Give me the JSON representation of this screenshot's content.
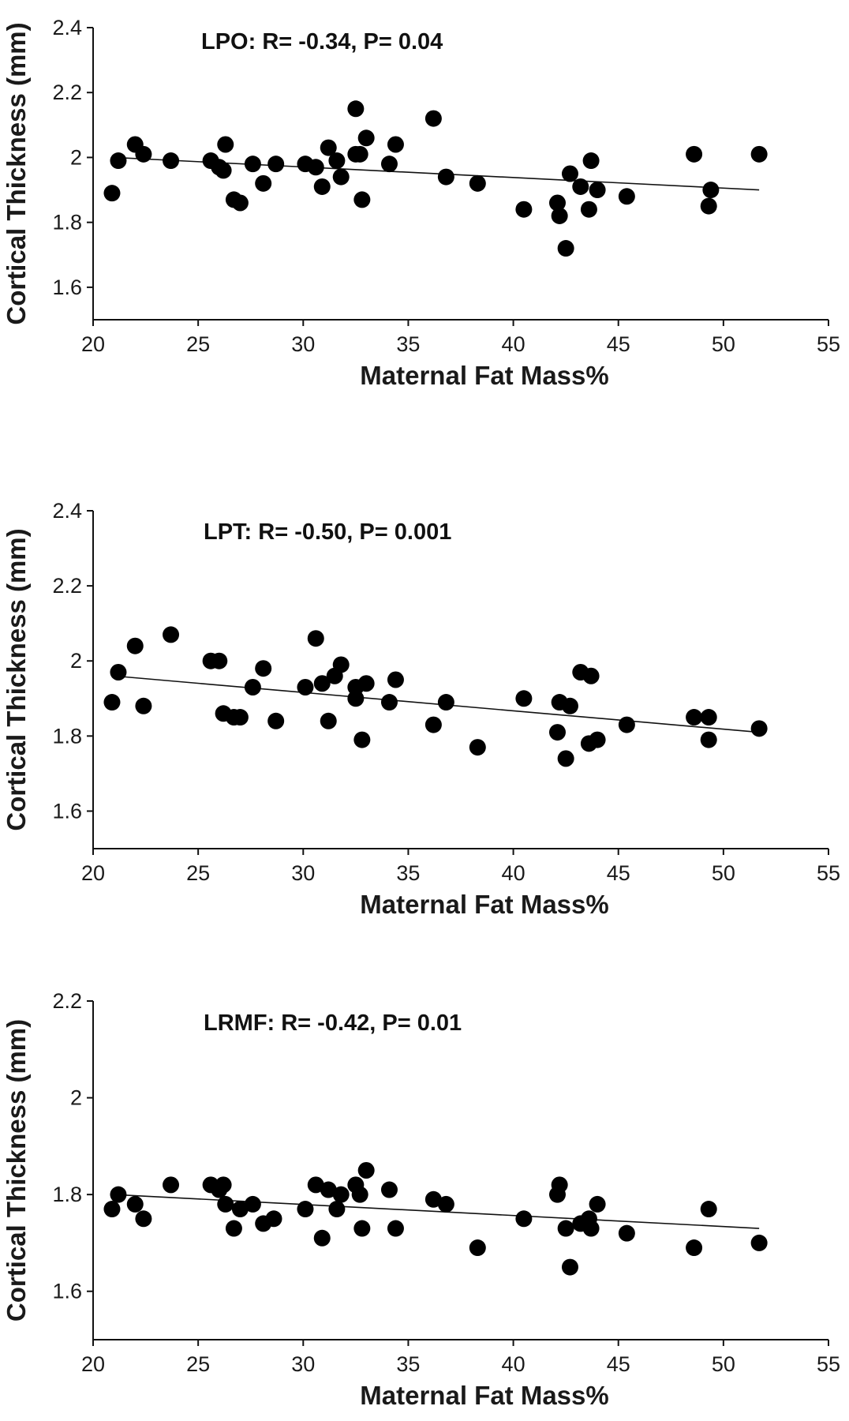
{
  "chart_data": [
    {
      "type": "scatter",
      "annotation": "LPO: R= -0.34, P= 0.04",
      "xlabel": "Maternal Fat Mass%",
      "ylabel": "Cortical Thickness (mm)",
      "xlim": [
        20,
        55
      ],
      "ylim": [
        1.5,
        2.4
      ],
      "xticks": [
        "20",
        "25",
        "30",
        "35",
        "40",
        "45",
        "50",
        "55"
      ],
      "yticks": [
        "1.6",
        "1.8",
        "2",
        "2.2",
        "2.4"
      ],
      "trendline": {
        "x": [
          21,
          51.7
        ],
        "y": [
          2.0,
          1.9
        ]
      },
      "points": [
        [
          20.9,
          1.89
        ],
        [
          21.2,
          1.99
        ],
        [
          22.0,
          2.04
        ],
        [
          22.4,
          2.01
        ],
        [
          23.7,
          1.99
        ],
        [
          25.6,
          1.99
        ],
        [
          26.0,
          1.97
        ],
        [
          26.2,
          1.96
        ],
        [
          26.3,
          2.04
        ],
        [
          26.7,
          1.87
        ],
        [
          27.0,
          1.86
        ],
        [
          27.6,
          1.98
        ],
        [
          28.1,
          1.92
        ],
        [
          28.7,
          1.98
        ],
        [
          30.1,
          1.98
        ],
        [
          30.6,
          1.97
        ],
        [
          30.9,
          1.91
        ],
        [
          31.2,
          2.03
        ],
        [
          31.6,
          1.99
        ],
        [
          31.8,
          1.94
        ],
        [
          32.5,
          2.15
        ],
        [
          32.5,
          2.01
        ],
        [
          32.7,
          2.01
        ],
        [
          32.8,
          1.87
        ],
        [
          33.0,
          2.06
        ],
        [
          34.1,
          1.98
        ],
        [
          34.4,
          2.04
        ],
        [
          36.2,
          2.12
        ],
        [
          36.8,
          1.94
        ],
        [
          38.3,
          1.92
        ],
        [
          40.5,
          1.84
        ],
        [
          42.1,
          1.86
        ],
        [
          42.2,
          1.82
        ],
        [
          42.5,
          1.72
        ],
        [
          42.7,
          1.95
        ],
        [
          43.2,
          1.91
        ],
        [
          43.6,
          1.84
        ],
        [
          43.7,
          1.99
        ],
        [
          44.0,
          1.9
        ],
        [
          45.4,
          1.88
        ],
        [
          48.6,
          2.01
        ],
        [
          49.3,
          1.85
        ],
        [
          49.4,
          1.9
        ],
        [
          51.7,
          2.01
        ]
      ]
    },
    {
      "type": "scatter",
      "annotation": "LPT: R= -0.50, P= 0.001",
      "xlabel": "Maternal Fat Mass%",
      "ylabel": "Cortical Thickness (mm)",
      "xlim": [
        20,
        55
      ],
      "ylim": [
        1.5,
        2.4
      ],
      "xticks": [
        "20",
        "25",
        "30",
        "35",
        "40",
        "45",
        "50",
        "55"
      ],
      "yticks": [
        "1.6",
        "1.8",
        "2",
        "2.2",
        "2.4"
      ],
      "trendline": {
        "x": [
          21,
          51.7
        ],
        "y": [
          1.96,
          1.81
        ]
      },
      "points": [
        [
          20.9,
          1.89
        ],
        [
          21.2,
          1.97
        ],
        [
          22.0,
          2.04
        ],
        [
          22.4,
          1.88
        ],
        [
          23.7,
          2.07
        ],
        [
          25.6,
          2.0
        ],
        [
          26.0,
          2.0
        ],
        [
          26.2,
          1.86
        ],
        [
          26.7,
          1.85
        ],
        [
          27.0,
          1.85
        ],
        [
          27.6,
          1.93
        ],
        [
          28.1,
          1.98
        ],
        [
          28.7,
          1.84
        ],
        [
          30.1,
          1.93
        ],
        [
          30.6,
          2.06
        ],
        [
          30.9,
          1.94
        ],
        [
          31.2,
          1.84
        ],
        [
          31.5,
          1.96
        ],
        [
          31.8,
          1.99
        ],
        [
          32.5,
          1.9
        ],
        [
          32.5,
          1.93
        ],
        [
          32.8,
          1.79
        ],
        [
          33.0,
          1.94
        ],
        [
          34.1,
          1.89
        ],
        [
          34.4,
          1.95
        ],
        [
          36.2,
          1.83
        ],
        [
          36.8,
          1.89
        ],
        [
          38.3,
          1.77
        ],
        [
          40.5,
          1.9
        ],
        [
          42.1,
          1.81
        ],
        [
          42.2,
          1.89
        ],
        [
          42.5,
          1.74
        ],
        [
          42.7,
          1.88
        ],
        [
          43.2,
          1.97
        ],
        [
          43.6,
          1.78
        ],
        [
          43.7,
          1.96
        ],
        [
          44.0,
          1.79
        ],
        [
          45.4,
          1.83
        ],
        [
          48.6,
          1.85
        ],
        [
          49.3,
          1.85
        ],
        [
          49.3,
          1.79
        ],
        [
          51.7,
          1.82
        ]
      ]
    },
    {
      "type": "scatter",
      "annotation": "LRMF: R= -0.42, P= 0.01",
      "xlabel": "Maternal Fat Mass%",
      "ylabel": "Cortical Thickness (mm)",
      "xlim": [
        20,
        55
      ],
      "ylim": [
        1.5,
        2.2
      ],
      "xticks": [
        "20",
        "25",
        "30",
        "35",
        "40",
        "45",
        "50",
        "55"
      ],
      "yticks": [
        "1.6",
        "1.8",
        "2",
        "2.2"
      ],
      "trendline": {
        "x": [
          21,
          51.7
        ],
        "y": [
          1.8,
          1.73
        ]
      },
      "points": [
        [
          20.9,
          1.77
        ],
        [
          21.2,
          1.8
        ],
        [
          22.0,
          1.78
        ],
        [
          22.4,
          1.75
        ],
        [
          23.7,
          1.82
        ],
        [
          25.6,
          1.82
        ],
        [
          26.0,
          1.81
        ],
        [
          26.2,
          1.82
        ],
        [
          26.3,
          1.78
        ],
        [
          26.7,
          1.73
        ],
        [
          27.0,
          1.77
        ],
        [
          27.6,
          1.78
        ],
        [
          28.1,
          1.74
        ],
        [
          28.6,
          1.75
        ],
        [
          30.1,
          1.77
        ],
        [
          30.6,
          1.82
        ],
        [
          30.9,
          1.71
        ],
        [
          31.2,
          1.81
        ],
        [
          31.6,
          1.77
        ],
        [
          31.8,
          1.8
        ],
        [
          32.5,
          1.82
        ],
        [
          32.7,
          1.8
        ],
        [
          32.8,
          1.73
        ],
        [
          33.0,
          1.85
        ],
        [
          34.1,
          1.81
        ],
        [
          34.4,
          1.73
        ],
        [
          36.2,
          1.79
        ],
        [
          36.8,
          1.78
        ],
        [
          38.3,
          1.69
        ],
        [
          40.5,
          1.75
        ],
        [
          42.1,
          1.8
        ],
        [
          42.2,
          1.82
        ],
        [
          42.5,
          1.73
        ],
        [
          42.7,
          1.65
        ],
        [
          43.2,
          1.74
        ],
        [
          43.6,
          1.75
        ],
        [
          43.7,
          1.73
        ],
        [
          44.0,
          1.78
        ],
        [
          45.4,
          1.72
        ],
        [
          48.6,
          1.69
        ],
        [
          49.3,
          1.77
        ],
        [
          51.7,
          1.7
        ]
      ]
    }
  ]
}
